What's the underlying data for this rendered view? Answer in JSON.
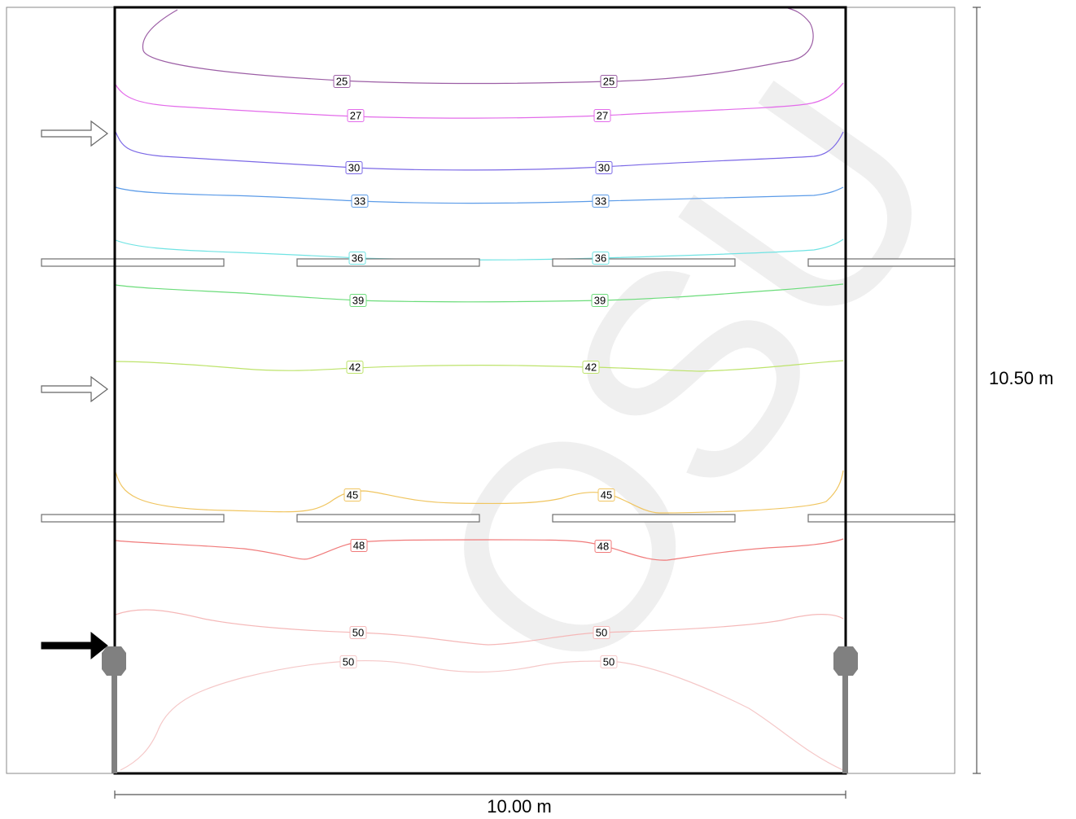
{
  "dimensions": {
    "width_label": "10.00 m",
    "height_label": "10.50 m"
  },
  "contours": [
    {
      "value": "25",
      "color": "#9c5ea5",
      "labels": [
        "25",
        "25"
      ]
    },
    {
      "value": "27",
      "color": "#e36bea",
      "labels": [
        "27",
        "27"
      ]
    },
    {
      "value": "30",
      "color": "#7b68e6",
      "labels": [
        "30",
        "30"
      ]
    },
    {
      "value": "33",
      "color": "#5b9be8",
      "labels": [
        "33",
        "33"
      ]
    },
    {
      "value": "36",
      "color": "#6fe3e3",
      "labels": [
        "36",
        "36"
      ]
    },
    {
      "value": "39",
      "color": "#6bdc7a",
      "labels": [
        "39",
        "39"
      ]
    },
    {
      "value": "42",
      "color": "#bde36b",
      "labels": [
        "42",
        "42"
      ]
    },
    {
      "value": "45",
      "color": "#f0c560",
      "labels": [
        "45",
        "45"
      ]
    },
    {
      "value": "48",
      "color": "#f07a7a",
      "labels": [
        "48",
        "48"
      ]
    },
    {
      "value": "50",
      "color": "#f5b8b8",
      "labels": [
        "50",
        "50"
      ]
    },
    {
      "value": "50",
      "color": "#f5c8c8",
      "labels": [
        "50",
        "50"
      ]
    }
  ],
  "watermark": "OSU",
  "colors": {
    "outline": "#000000",
    "structure": "#7a7a7a",
    "luminaire": "#808080",
    "dimension_line": "#555555"
  }
}
